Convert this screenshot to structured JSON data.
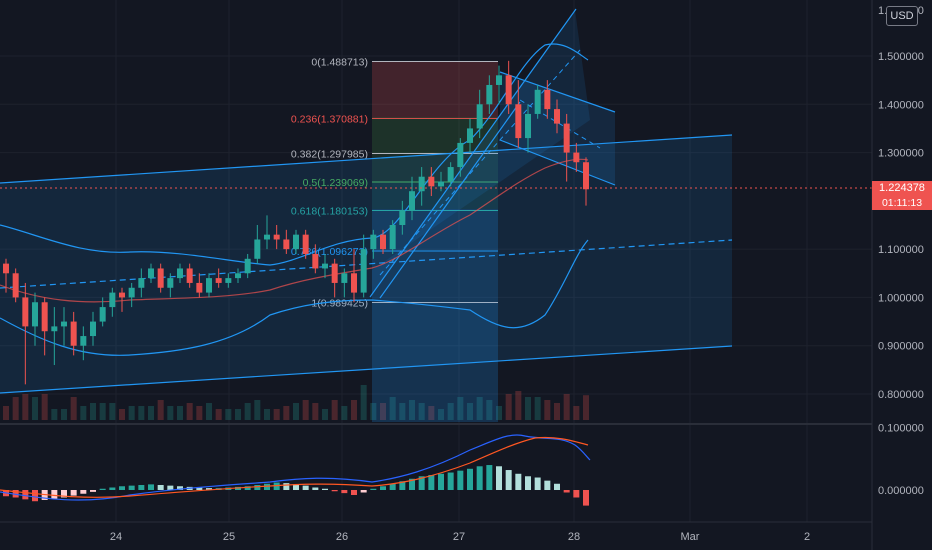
{
  "currency": "USD",
  "current_price": "1.224378",
  "countdown": "01:11:13",
  "colors": {
    "background": "#131722",
    "up": "#26a69a",
    "down": "#ef5350",
    "channel": "#2196f3",
    "price_tag": "#ef5350"
  },
  "price_axis": {
    "top_label": "1.600000",
    "labels": [
      "1.500000",
      "1.400000",
      "1.300000",
      "1.100000",
      "1.000000",
      "0.900000",
      "0.800000"
    ]
  },
  "macd_axis": {
    "labels": [
      "0.100000",
      "0.000000"
    ]
  },
  "time_axis": {
    "labels": [
      "24",
      "25",
      "26",
      "27",
      "28",
      "Mar",
      "2"
    ]
  },
  "fib_levels": [
    {
      "label": "0(1.488713)",
      "price": 1.488713,
      "color": "#b2b5be"
    },
    {
      "label": "0.236(1.370881)",
      "price": 1.370881,
      "color": "#ef5350"
    },
    {
      "label": "0.382(1.297985)",
      "price": 1.297985,
      "color": "#b2b5be"
    },
    {
      "label": "0.5(1.239069)",
      "price": 1.239069,
      "color": "#4caf50"
    },
    {
      "label": "0.618(1.180153)",
      "price": 1.180153,
      "color": "#26a69a"
    },
    {
      "label": "0.786(1.096273)",
      "price": 1.096273,
      "color": "#2196f3"
    },
    {
      "label": "1(0.989425)",
      "price": 0.989425,
      "color": "#b2b5be"
    }
  ],
  "chart_data": {
    "type": "candlestick",
    "price_range": [
      0.76,
      1.61
    ],
    "candles": [
      [
        1.07,
        1.08,
        1.01,
        1.05
      ],
      [
        1.05,
        1.06,
        0.99,
        1.0
      ],
      [
        1.0,
        1.03,
        0.82,
        0.94
      ],
      [
        0.94,
        1.01,
        0.9,
        0.99
      ],
      [
        0.99,
        1.0,
        0.88,
        0.93
      ],
      [
        0.93,
        0.98,
        0.86,
        0.94
      ],
      [
        0.94,
        0.98,
        0.9,
        0.95
      ],
      [
        0.95,
        0.97,
        0.88,
        0.9
      ],
      [
        0.9,
        0.94,
        0.87,
        0.92
      ],
      [
        0.92,
        0.97,
        0.9,
        0.95
      ],
      [
        0.95,
        1.0,
        0.94,
        0.98
      ],
      [
        0.98,
        1.02,
        0.96,
        1.01
      ],
      [
        1.01,
        1.02,
        0.97,
        1.0
      ],
      [
        1.0,
        1.03,
        0.98,
        1.02
      ],
      [
        1.02,
        1.06,
        1.0,
        1.04
      ],
      [
        1.04,
        1.07,
        1.03,
        1.06
      ],
      [
        1.06,
        1.07,
        1.01,
        1.02
      ],
      [
        1.02,
        1.05,
        1.0,
        1.04
      ],
      [
        1.04,
        1.07,
        1.03,
        1.06
      ],
      [
        1.06,
        1.07,
        1.02,
        1.03
      ],
      [
        1.03,
        1.05,
        1.0,
        1.01
      ],
      [
        1.01,
        1.05,
        1.0,
        1.04
      ],
      [
        1.04,
        1.06,
        1.02,
        1.03
      ],
      [
        1.03,
        1.05,
        1.02,
        1.04
      ],
      [
        1.04,
        1.06,
        1.03,
        1.05
      ],
      [
        1.05,
        1.09,
        1.04,
        1.08
      ],
      [
        1.08,
        1.15,
        1.07,
        1.12
      ],
      [
        1.12,
        1.17,
        1.1,
        1.13
      ],
      [
        1.13,
        1.15,
        1.1,
        1.12
      ],
      [
        1.12,
        1.14,
        1.09,
        1.1
      ],
      [
        1.1,
        1.14,
        1.09,
        1.13
      ],
      [
        1.13,
        1.14,
        1.08,
        1.09
      ],
      [
        1.09,
        1.11,
        1.05,
        1.06
      ],
      [
        1.06,
        1.09,
        1.04,
        1.07
      ],
      [
        1.07,
        1.08,
        1.0,
        1.03
      ],
      [
        1.03,
        1.06,
        1.0,
        1.05
      ],
      [
        1.05,
        1.1,
        0.99,
        1.01
      ],
      [
        1.01,
        1.13,
        1.0,
        1.1
      ],
      [
        1.1,
        1.14,
        1.08,
        1.13
      ],
      [
        1.13,
        1.14,
        1.09,
        1.1
      ],
      [
        1.1,
        1.16,
        1.09,
        1.15
      ],
      [
        1.15,
        1.2,
        1.13,
        1.18
      ],
      [
        1.18,
        1.25,
        1.16,
        1.22
      ],
      [
        1.22,
        1.27,
        1.19,
        1.25
      ],
      [
        1.25,
        1.27,
        1.21,
        1.23
      ],
      [
        1.23,
        1.26,
        1.22,
        1.24
      ],
      [
        1.24,
        1.28,
        1.23,
        1.27
      ],
      [
        1.27,
        1.33,
        1.25,
        1.32
      ],
      [
        1.32,
        1.37,
        1.3,
        1.35
      ],
      [
        1.35,
        1.43,
        1.33,
        1.4
      ],
      [
        1.4,
        1.46,
        1.38,
        1.44
      ],
      [
        1.44,
        1.48,
        1.4,
        1.46
      ],
      [
        1.46,
        1.49,
        1.38,
        1.4
      ],
      [
        1.4,
        1.45,
        1.31,
        1.33
      ],
      [
        1.33,
        1.4,
        1.3,
        1.38
      ],
      [
        1.38,
        1.44,
        1.37,
        1.43
      ],
      [
        1.43,
        1.45,
        1.37,
        1.39
      ],
      [
        1.39,
        1.41,
        1.34,
        1.36
      ],
      [
        1.36,
        1.38,
        1.24,
        1.3
      ],
      [
        1.3,
        1.32,
        1.26,
        1.28
      ],
      [
        1.28,
        1.29,
        1.19,
        1.224
      ]
    ],
    "macd": {
      "histogram": [
        -0.01,
        -0.012,
        -0.015,
        -0.018,
        -0.016,
        -0.014,
        -0.012,
        -0.009,
        -0.006,
        -0.003,
        0.002,
        0.004,
        0.006,
        0.007,
        0.008,
        0.009,
        0.008,
        0.007,
        0.006,
        0.005,
        0.004,
        0.003,
        0.003,
        0.004,
        0.005,
        0.006,
        0.008,
        0.01,
        0.012,
        0.011,
        0.009,
        0.007,
        0.004,
        0.002,
        -0.002,
        -0.005,
        -0.008,
        -0.004,
        0.002,
        0.006,
        0.01,
        0.014,
        0.018,
        0.022,
        0.024,
        0.026,
        0.028,
        0.031,
        0.034,
        0.038,
        0.04,
        0.038,
        0.032,
        0.026,
        0.022,
        0.02,
        0.015,
        0.01,
        -0.004,
        -0.012,
        -0.025
      ],
      "range": [
        -0.04,
        0.11
      ]
    }
  }
}
